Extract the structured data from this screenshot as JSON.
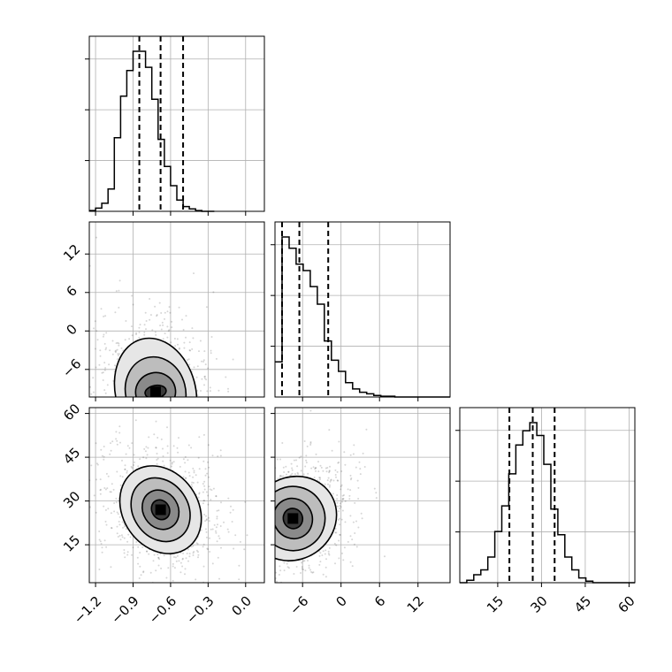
{
  "chart_data": {
    "type": "corner",
    "title": "",
    "grid": true,
    "parameters": [
      {
        "range": [
          -1.25,
          0.15
        ],
        "ticks": [
          {
            "v": -1.2,
            "label": "−1.2"
          },
          {
            "v": -0.9,
            "label": "−0.9"
          },
          {
            "v": -0.6,
            "label": "−0.6"
          },
          {
            "v": -0.3,
            "label": "−0.3"
          },
          {
            "v": 0.0,
            "label": "0.0"
          }
        ],
        "quantiles": [
          -0.85,
          -0.68,
          -0.5
        ],
        "hist_edges_start": -1.25,
        "hist_bin_width": 0.05,
        "hist_counts": [
          0.5,
          2,
          5,
          14,
          46,
          72,
          88,
          100,
          100,
          90,
          70,
          45,
          28,
          16,
          7,
          3,
          1.5,
          0.5,
          0,
          0
        ]
      },
      {
        "range": [
          -10.3,
          17
        ],
        "ticks": [
          {
            "v": -6,
            "label": "−6"
          },
          {
            "v": 0,
            "label": "0"
          },
          {
            "v": 6,
            "label": "6"
          },
          {
            "v": 12,
            "label": "12"
          }
        ],
        "quantiles": [
          -9.2,
          -6.5,
          -2
        ],
        "hist_edges_start": -10.3,
        "hist_bin_width": 1.1,
        "hist_counts": [
          22,
          100,
          93,
          83,
          79,
          69,
          58,
          35,
          23,
          16,
          9,
          5,
          3,
          2,
          1,
          0.5,
          0.5,
          0,
          0,
          0,
          0,
          0,
          0,
          0,
          0
        ]
      },
      {
        "range": [
          2,
          62
        ],
        "ticks": [
          {
            "v": 15,
            "label": "15"
          },
          {
            "v": 30,
            "label": "30"
          },
          {
            "v": 45,
            "label": "45"
          },
          {
            "v": 60,
            "label": "60"
          }
        ],
        "quantiles": [
          19,
          27,
          34.5
        ],
        "hist_edges_start": 2,
        "hist_bin_width": 2.4,
        "hist_counts": [
          0,
          1.5,
          5,
          8,
          16,
          32,
          48,
          68,
          86,
          95,
          100,
          92,
          74,
          46,
          30,
          16,
          8,
          3,
          1,
          0,
          0,
          0,
          0,
          0,
          0
        ]
      }
    ],
    "pair_panels": [
      {
        "x_param": 0,
        "y_param": 1,
        "center": [
          -0.72,
          -9.5
        ],
        "contours": [
          {
            "rx": 0.085,
            "ry": 1.0,
            "angle": 10
          },
          {
            "rx": 0.16,
            "ry": 3.0,
            "angle": 12
          },
          {
            "rx": 0.24,
            "ry": 5.5,
            "angle": 14
          },
          {
            "rx": 0.32,
            "ry": 8.5,
            "angle": 15
          }
        ]
      },
      {
        "x_param": 0,
        "y_param": 2,
        "center": [
          -0.68,
          27
        ],
        "contours": [
          {
            "rx": 0.07,
            "ry": 3.5,
            "angle": 30
          },
          {
            "rx": 0.14,
            "ry": 7,
            "angle": 32
          },
          {
            "rx": 0.22,
            "ry": 11.5,
            "angle": 34
          },
          {
            "rx": 0.3,
            "ry": 16,
            "angle": 35
          }
        ]
      },
      {
        "x_param": 1,
        "y_param": 2,
        "center": [
          -7.5,
          24
        ],
        "contours": [
          {
            "rx": 1.5,
            "ry": 3.5,
            "angle": 20
          },
          {
            "rx": 3.0,
            "ry": 7,
            "angle": 28
          },
          {
            "rx": 5.0,
            "ry": 11,
            "angle": 32
          },
          {
            "rx": 7.0,
            "ry": 14,
            "angle": 35
          }
        ]
      }
    ]
  }
}
